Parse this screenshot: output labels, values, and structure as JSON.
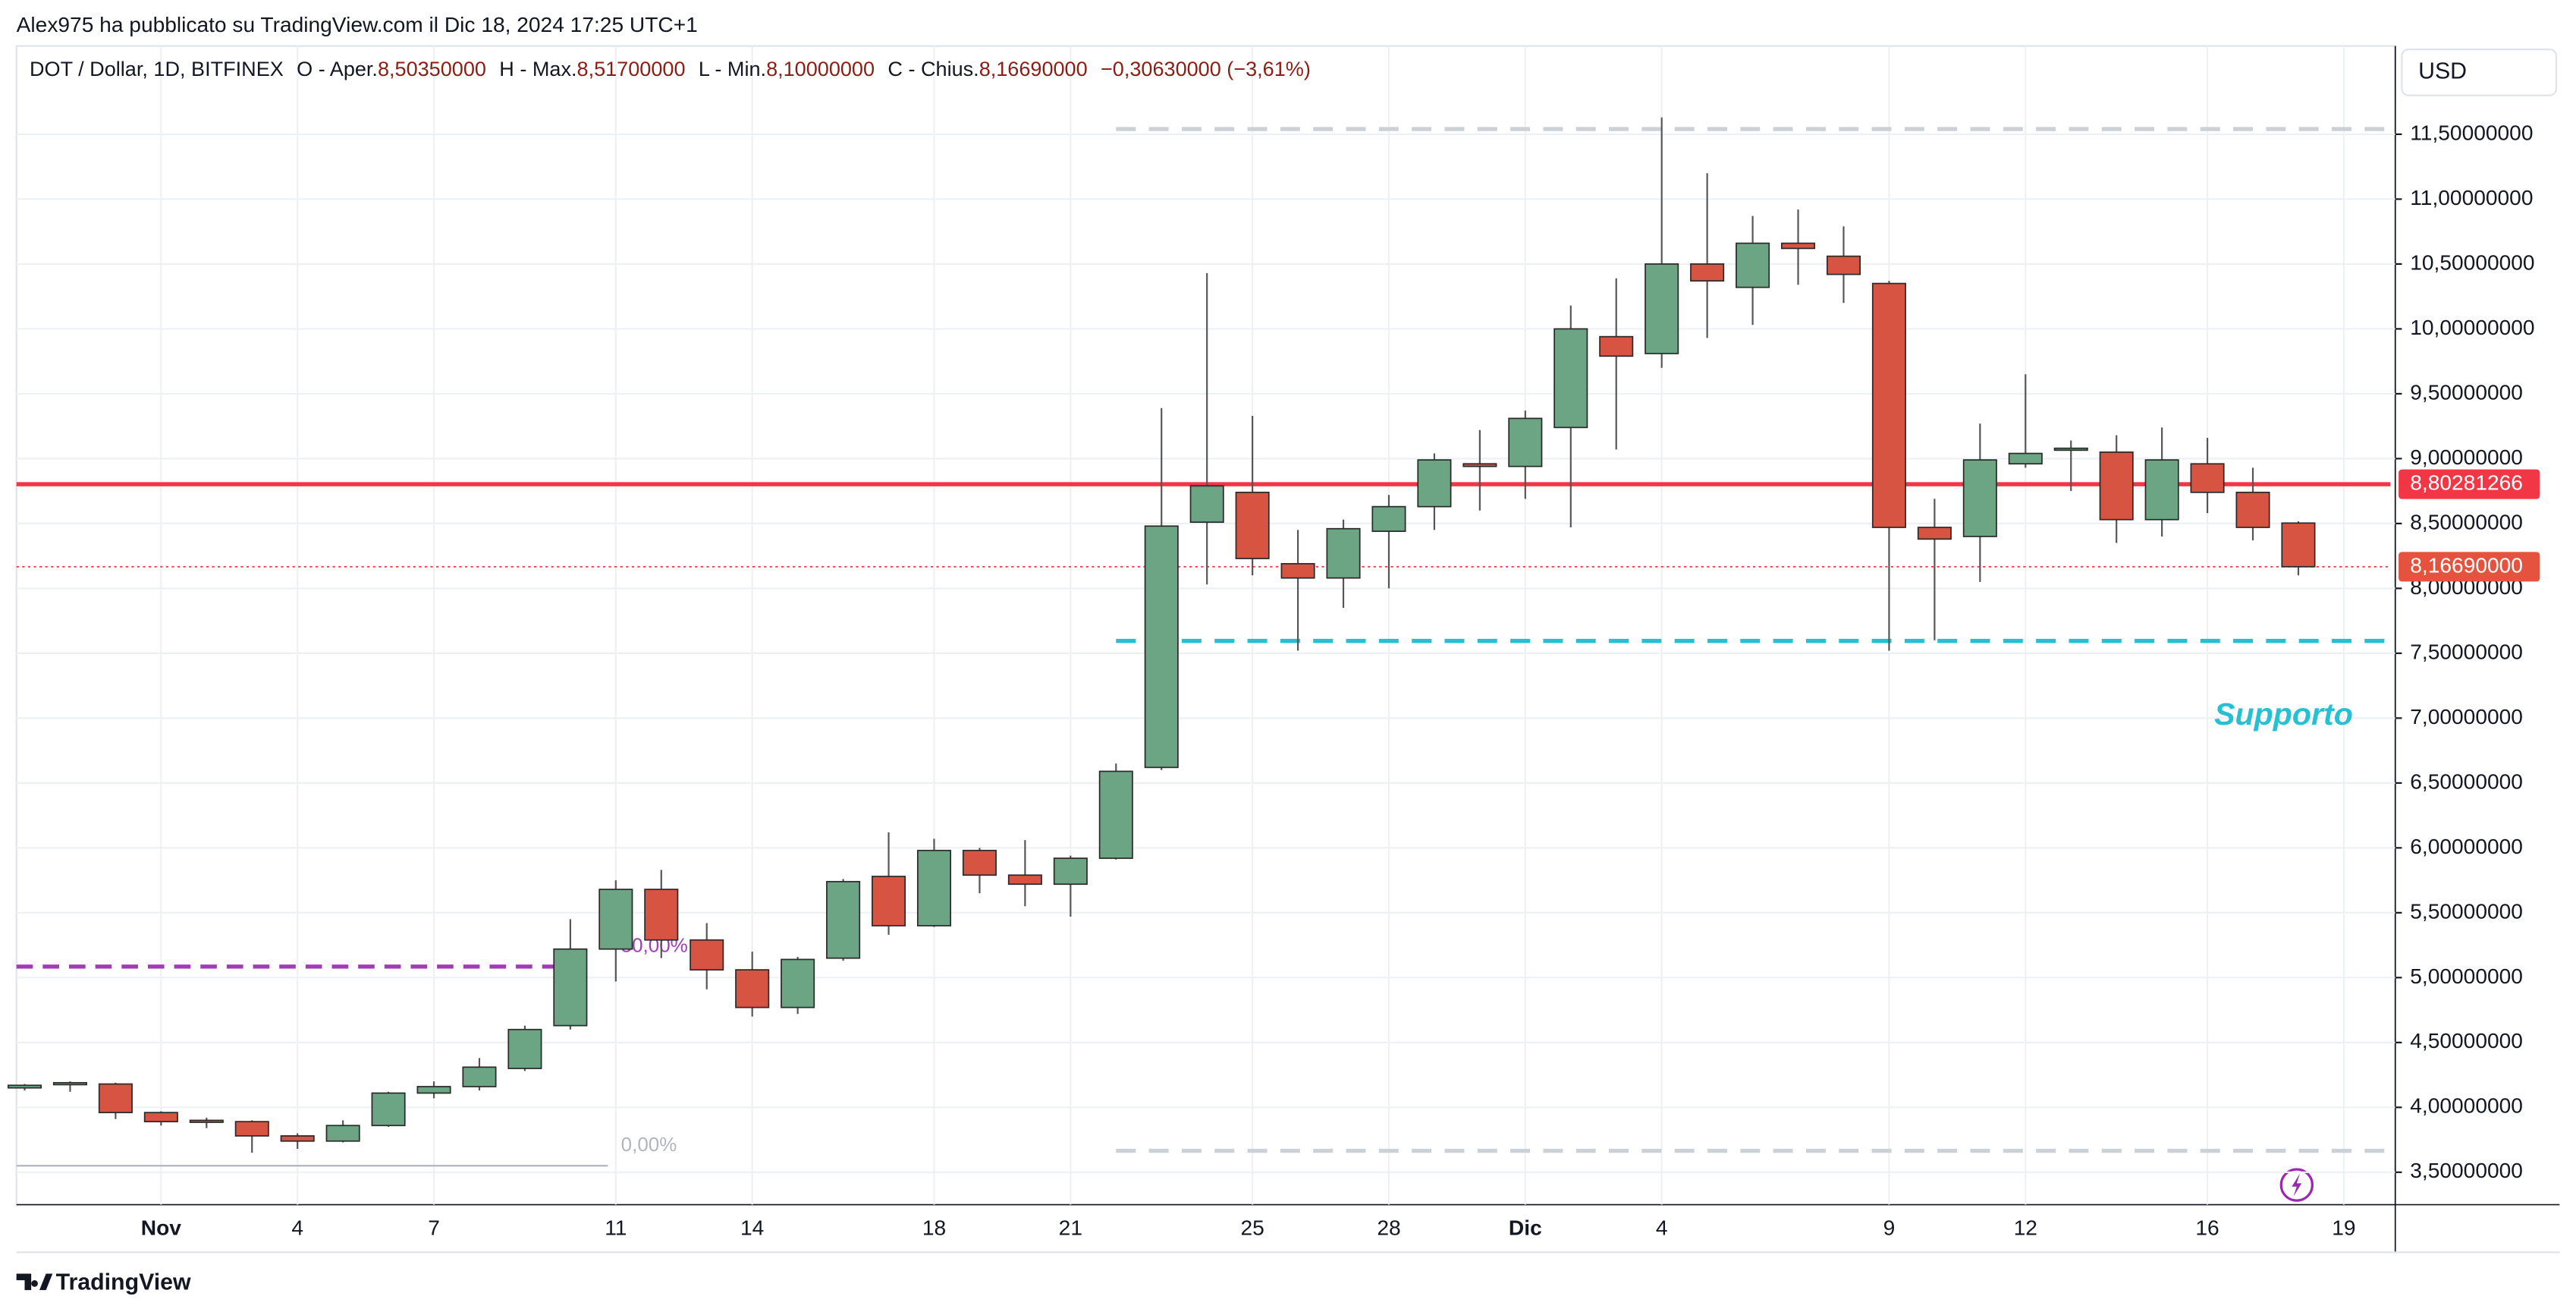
{
  "header": {
    "text": "Alex975 ha pubblicato su TradingView.com il Dic 18, 2024 17:25 UTC+1"
  },
  "footer": {
    "brand": "TradingView"
  },
  "chart_data": {
    "type": "candlestick",
    "legend": {
      "symbol": "DOT / Dollar, 1D, BITFINEX",
      "fields": [
        {
          "key": "O - Aper.",
          "value": "8,50350000"
        },
        {
          "key": "H - Max.",
          "value": "8,51700000"
        },
        {
          "key": "L - Min.",
          "value": "8,10000000"
        },
        {
          "key": "C - Chius.",
          "value": "8,16690000"
        }
      ],
      "change": "−0,30630000 (−3,61%)"
    },
    "currency": "USD",
    "categories": [
      null,
      null,
      null,
      "Nov",
      null,
      null,
      "4",
      null,
      null,
      "7",
      null,
      null,
      null,
      "11",
      null,
      null,
      "14",
      null,
      null,
      null,
      "18",
      null,
      null,
      "21",
      null,
      null,
      null,
      "25",
      null,
      null,
      "28",
      null,
      null,
      "Dic",
      null,
      null,
      "4",
      null,
      null,
      null,
      null,
      "9",
      null,
      null,
      "12",
      null,
      null,
      null,
      "16",
      null,
      null,
      "19"
    ],
    "open": [
      4.15,
      4.18,
      4.18,
      3.96,
      3.9,
      3.89,
      3.78,
      3.74,
      3.86,
      4.11,
      4.16,
      4.3,
      4.63,
      5.22,
      5.68,
      5.29,
      5.06,
      4.77,
      5.15,
      5.78,
      5.4,
      5.98,
      5.79,
      5.72,
      5.92,
      6.62,
      8.51,
      8.74,
      8.19,
      8.08,
      8.44,
      8.63,
      8.96,
      8.94,
      9.24,
      9.94,
      9.81,
      10.5,
      10.32,
      10.66,
      10.56,
      10.35,
      8.47,
      8.4,
      8.96,
      9.07,
      9.05,
      8.53,
      8.96,
      8.74,
      8.5035,
      null
    ],
    "high": [
      4.18,
      4.2,
      4.19,
      3.97,
      3.92,
      3.9,
      3.8,
      3.9,
      4.12,
      4.2,
      4.38,
      4.63,
      5.45,
      5.75,
      5.83,
      5.42,
      5.2,
      5.16,
      5.76,
      6.12,
      6.07,
      6.0,
      6.06,
      5.94,
      6.65,
      9.39,
      10.43,
      9.33,
      8.45,
      8.53,
      8.72,
      9.04,
      9.22,
      9.37,
      10.18,
      10.39,
      11.63,
      11.2,
      10.87,
      10.92,
      10.79,
      10.37,
      8.69,
      9.27,
      9.65,
      9.14,
      9.18,
      9.24,
      9.16,
      8.93,
      8.517,
      null
    ],
    "low": [
      4.13,
      4.12,
      3.91,
      3.86,
      3.84,
      3.65,
      3.68,
      3.73,
      3.85,
      4.07,
      4.13,
      4.28,
      4.6,
      4.97,
      5.15,
      4.91,
      4.7,
      4.72,
      5.13,
      5.33,
      5.39,
      5.65,
      5.55,
      5.47,
      5.91,
      6.6,
      8.03,
      8.1,
      7.52,
      7.85,
      8.0,
      8.45,
      8.6,
      8.69,
      8.47,
      9.07,
      9.7,
      9.93,
      10.03,
      10.34,
      10.2,
      7.52,
      7.6,
      8.05,
      8.93,
      8.75,
      8.35,
      8.4,
      8.58,
      8.37,
      8.1,
      null
    ],
    "close": [
      4.17,
      4.19,
      3.96,
      3.89,
      3.89,
      3.78,
      3.74,
      3.86,
      4.11,
      4.16,
      4.31,
      4.6,
      5.22,
      5.68,
      5.29,
      5.06,
      4.77,
      5.14,
      5.74,
      5.4,
      5.98,
      5.79,
      5.72,
      5.92,
      6.59,
      8.48,
      8.79,
      8.23,
      8.08,
      8.46,
      8.63,
      8.99,
      8.94,
      9.31,
      10.0,
      9.79,
      10.5,
      10.37,
      10.66,
      10.62,
      10.42,
      8.47,
      8.38,
      8.99,
      9.04,
      9.08,
      8.53,
      8.99,
      8.74,
      8.47,
      8.1669,
      null
    ],
    "up_color": "#6ba583",
    "down_color": "#d75442",
    "outline_color": "#2b2b2b",
    "ylim": [
      3.25,
      12.18
    ],
    "yticks": [
      {
        "value": 3.5,
        "label": "3,50000000"
      },
      {
        "value": 4,
        "label": "4,00000000"
      },
      {
        "value": 4.5,
        "label": "4,50000000"
      },
      {
        "value": 5,
        "label": "5,00000000"
      },
      {
        "value": 5.5,
        "label": "5,50000000"
      },
      {
        "value": 6,
        "label": "6,00000000"
      },
      {
        "value": 6.5,
        "label": "6,50000000"
      },
      {
        "value": 7,
        "label": "7,00000000"
      },
      {
        "value": 7.5,
        "label": "7,50000000"
      },
      {
        "value": 8,
        "label": "8,00000000"
      },
      {
        "value": 8.5,
        "label": "8,50000000"
      },
      {
        "value": 9,
        "label": "9,00000000"
      },
      {
        "value": 9.5,
        "label": "9,50000000"
      },
      {
        "value": 10,
        "label": "10,00000000"
      },
      {
        "value": 10.5,
        "label": "10,50000000"
      },
      {
        "value": 11,
        "label": "11,00000000"
      },
      {
        "value": 11.5,
        "label": "11,50000000"
      }
    ],
    "grid": true,
    "levels": [
      {
        "value": 8.80281266,
        "label": "8,80281266",
        "color": "#f23645",
        "style": "solid"
      },
      {
        "value": 8.1669,
        "label": "8,16690000",
        "color": "#f23645",
        "style": "dotted"
      },
      {
        "value": 7.595,
        "color": "#26c0d3",
        "style": "dashed"
      },
      {
        "value": 11.54,
        "color": "#ccd1d8",
        "style": "dashed"
      },
      {
        "value": 3.665,
        "color": "#ccd1d8",
        "style": "dashed"
      }
    ],
    "fib_levels": [
      {
        "value": 5.085,
        "label": "50,00%",
        "color": "#a03db5"
      },
      {
        "value": 3.55,
        "label": "0,00%",
        "color": "#b2b5be"
      }
    ],
    "annotation": {
      "text": "Supporto",
      "color": "#26c0d3"
    }
  }
}
